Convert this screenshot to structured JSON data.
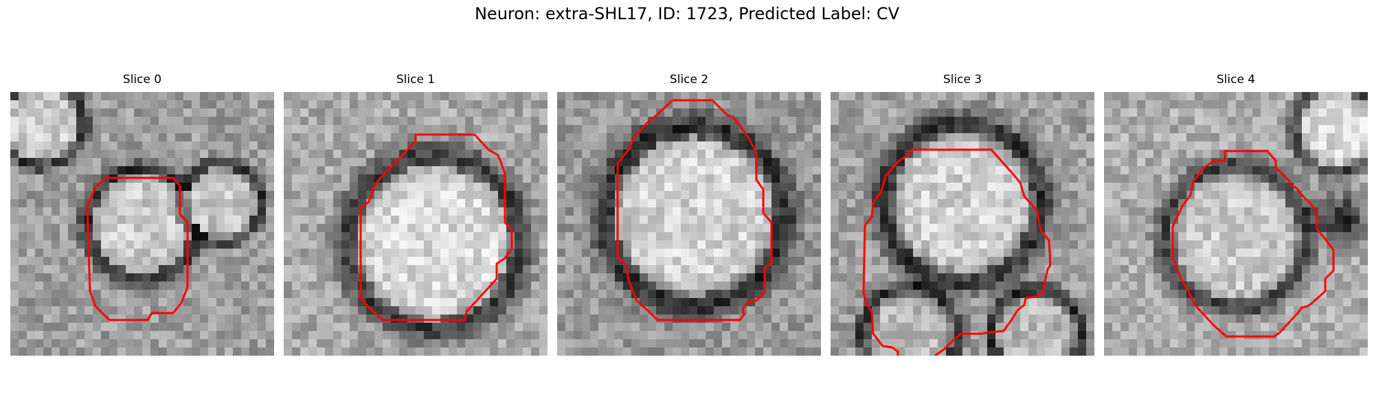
{
  "figure": {
    "title": "Neuron: extra-SHL17, ID: 1723, Predicted Label: CV"
  },
  "panels": [
    {
      "title": "Slice 0"
    },
    {
      "title": "Slice 1"
    },
    {
      "title": "Slice 2"
    },
    {
      "title": "Slice 3"
    },
    {
      "title": "Slice 4"
    }
  ],
  "colors": {
    "contour": "#ff0000",
    "background": "#ffffff"
  },
  "image_style": "grayscale-electron-microscopy"
}
